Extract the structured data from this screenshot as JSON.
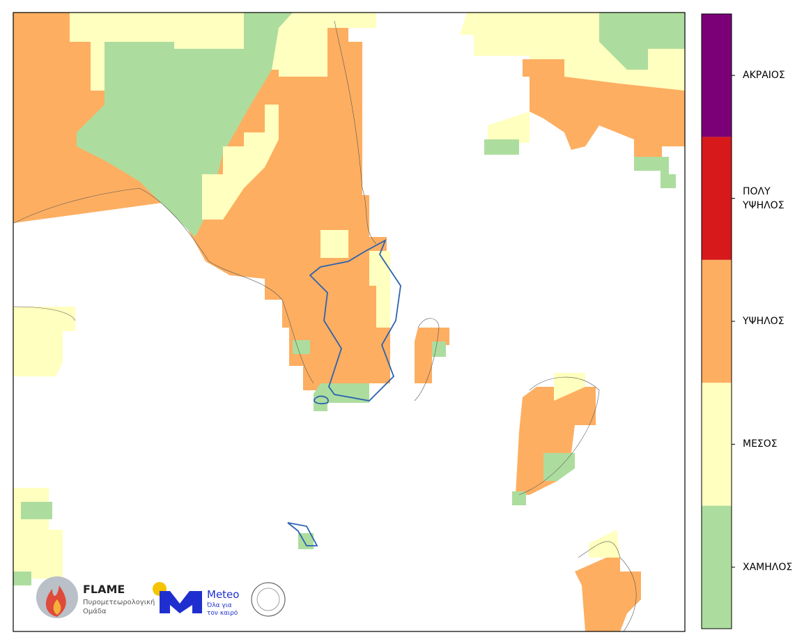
{
  "colorbar": {
    "levels": [
      {
        "label": "ΧΑΜΗΛΟΣ",
        "color": "#addd9e"
      },
      {
        "label": "ΜΕΣΟΣ",
        "color": "#ffffbf"
      },
      {
        "label": "ΥΨΗΛΟΣ",
        "color": "#fdae61"
      },
      {
        "label": "ΠΟΛΥ ΥΨΗΛΟΣ",
        "color": "#d7191c"
      },
      {
        "label": "ΑΚΡΑΙΟΣ",
        "color": "#7b0077"
      }
    ]
  },
  "logos": {
    "flame_title": "FLAME",
    "flame_subtitle": "Πυρομετεωρολογική Ομάδα",
    "meteo_title": "Meteo",
    "meteo_subtitle": "Όλα για τον καιρό"
  }
}
